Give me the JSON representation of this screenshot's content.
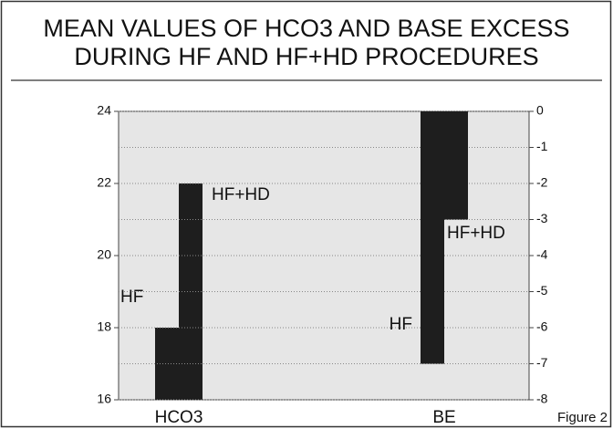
{
  "caption": "Figure 2",
  "chart_data": [
    {
      "type": "bar",
      "title": [
        "MEAN VALUES OF HCO3 AND BASE EXCESS",
        "DURING HF AND HF+HD PROCEDURES"
      ],
      "categories": [
        "HCO3"
      ],
      "series": [
        {
          "name": "HF",
          "color": "#1e1e1e",
          "values": [
            18
          ]
        },
        {
          "name": "HF+HD",
          "color": "#1e1e1e",
          "values": [
            22
          ]
        }
      ],
      "ylim": [
        16,
        24
      ],
      "yticks": [
        16,
        18,
        20,
        22,
        24
      ],
      "grid": true
    },
    {
      "type": "bar",
      "categories": [
        "BE"
      ],
      "series": [
        {
          "name": "HF",
          "color": "#1e1e1e",
          "values": [
            -7
          ],
          "axis": "y2"
        },
        {
          "name": "HF+HD",
          "color": "#1e1e1e",
          "values": [
            -3
          ],
          "axis": "y2"
        }
      ],
      "y2lim": [
        -8,
        0
      ],
      "y2ticks": [
        0,
        -1,
        -2,
        -3,
        -4,
        -5,
        -6,
        -7,
        -8
      ],
      "grid": true
    }
  ]
}
